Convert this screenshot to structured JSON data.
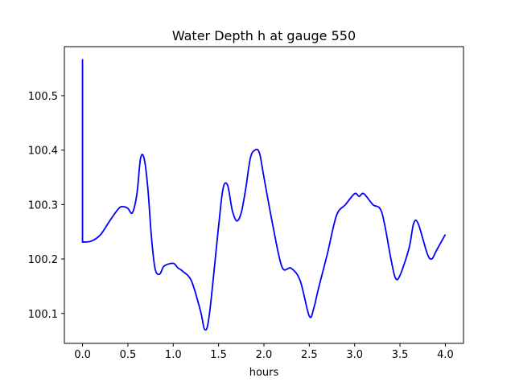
{
  "chart_data": {
    "type": "line",
    "title": "Water Depth h at gauge 550",
    "xlabel": "hours",
    "ylabel": "",
    "xlim": [
      -0.2,
      4.2
    ],
    "ylim": [
      100.045,
      100.59
    ],
    "grid": false,
    "legend": "none",
    "x_ticks": [
      {
        "value": 0.0,
        "label": "0.0"
      },
      {
        "value": 0.5,
        "label": "0.5"
      },
      {
        "value": 1.0,
        "label": "1.0"
      },
      {
        "value": 1.5,
        "label": "1.5"
      },
      {
        "value": 2.0,
        "label": "2.0"
      },
      {
        "value": 2.5,
        "label": "2.5"
      },
      {
        "value": 3.0,
        "label": "3.0"
      },
      {
        "value": 3.5,
        "label": "3.5"
      },
      {
        "value": 4.0,
        "label": "4.0"
      }
    ],
    "y_ticks": [
      {
        "value": 100.1,
        "label": "100.1"
      },
      {
        "value": 100.2,
        "label": "100.2"
      },
      {
        "value": 100.3,
        "label": "100.3"
      },
      {
        "value": 100.4,
        "label": "100.4"
      },
      {
        "value": 100.5,
        "label": "100.5"
      }
    ],
    "series": [
      {
        "color": "#0000ff",
        "x": [
          0.0,
          0.0,
          0.0,
          0.1,
          0.2,
          0.3,
          0.4,
          0.45,
          0.5,
          0.55,
          0.6,
          0.64,
          0.68,
          0.72,
          0.76,
          0.8,
          0.85,
          0.9,
          1.0,
          1.05,
          1.1,
          1.2,
          1.3,
          1.35,
          1.4,
          1.5,
          1.55,
          1.6,
          1.65,
          1.7,
          1.75,
          1.8,
          1.85,
          1.9,
          1.95,
          2.0,
          2.1,
          2.2,
          2.3,
          2.4,
          2.5,
          2.55,
          2.6,
          2.7,
          2.8,
          2.9,
          3.0,
          3.05,
          3.1,
          3.2,
          3.3,
          3.4,
          3.45,
          3.5,
          3.6,
          3.65,
          3.7,
          3.8,
          3.85,
          3.9,
          4.0
        ],
        "y": [
          100.567,
          100.231,
          100.231,
          100.233,
          100.245,
          100.27,
          100.293,
          100.296,
          100.293,
          100.285,
          100.32,
          100.385,
          100.384,
          100.33,
          100.24,
          100.182,
          100.172,
          100.187,
          100.192,
          100.184,
          100.178,
          100.16,
          100.105,
          100.07,
          100.1,
          100.26,
          100.33,
          100.335,
          100.29,
          100.27,
          100.285,
          100.33,
          100.385,
          100.4,
          100.395,
          100.35,
          100.26,
          100.185,
          100.183,
          100.16,
          100.095,
          100.11,
          100.145,
          100.21,
          100.28,
          100.3,
          100.32,
          100.315,
          100.32,
          100.3,
          100.285,
          100.2,
          100.165,
          100.17,
          100.22,
          100.265,
          100.265,
          100.21,
          100.2,
          100.215,
          100.245
        ]
      }
    ]
  }
}
